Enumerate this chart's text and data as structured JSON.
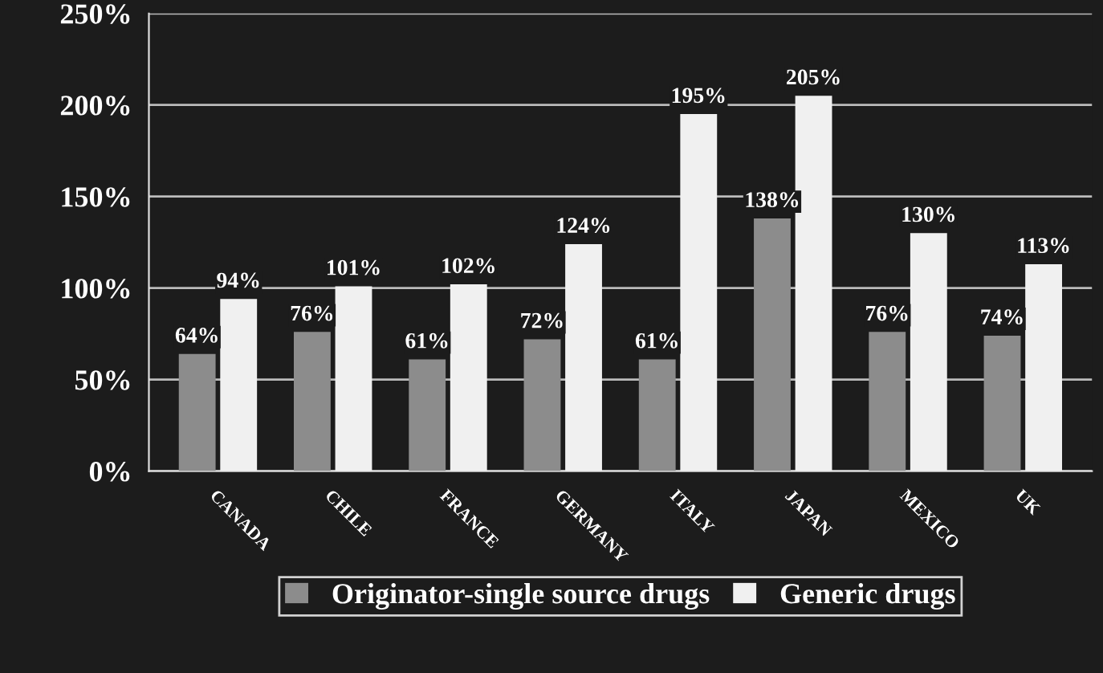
{
  "chart_data": {
    "type": "bar",
    "categories": [
      "CANADA",
      "CHILE",
      "FRANCE",
      "GERMANY",
      "ITALY",
      "JAPAN",
      "MEXICO",
      "UK"
    ],
    "series": [
      {
        "name": "Originator-single source drugs",
        "color": "#8c8c8c",
        "values": [
          64,
          76,
          61,
          72,
          61,
          138,
          76,
          74
        ],
        "value_labels": [
          "64%",
          "76%",
          "61%",
          "72%",
          "61%",
          "138%",
          "76%",
          "74%"
        ]
      },
      {
        "name": "Generic drugs",
        "color": "#f0f0f0",
        "values": [
          94,
          101,
          102,
          124,
          195,
          205,
          130,
          113
        ],
        "value_labels": [
          "94%",
          "101%",
          "102%",
          "124%",
          "195%",
          "205%",
          "130%",
          "113%"
        ]
      }
    ],
    "ylim": [
      0,
      250
    ],
    "yticks": [
      {
        "value": 0,
        "label": "0%"
      },
      {
        "value": 50,
        "label": "50%"
      },
      {
        "value": 100,
        "label": "100%"
      },
      {
        "value": 150,
        "label": "150%"
      },
      {
        "value": 200,
        "label": "200%"
      },
      {
        "value": 250,
        "label": "250%"
      }
    ],
    "grid": "y",
    "legend": "bottom"
  }
}
